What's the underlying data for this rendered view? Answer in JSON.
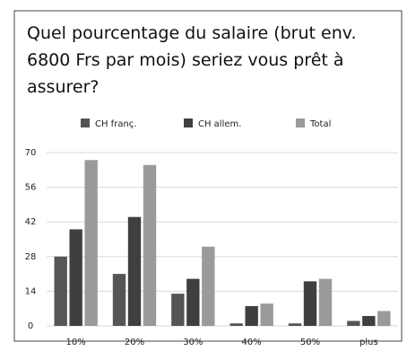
{
  "chart_data": {
    "type": "bar",
    "title": "Quel pourcentage du salaire (brut env. 6800 Frs par mois) seriez vous prêt à assurer?",
    "categories": [
      "10%",
      "20%",
      "30%",
      "40%",
      "50%",
      "plus"
    ],
    "series": [
      {
        "name": "CH franç.",
        "color": "#555555",
        "values": [
          28,
          21,
          13,
          1,
          1,
          2
        ]
      },
      {
        "name": "CH allem.",
        "color": "#3f3f3f",
        "values": [
          39,
          44,
          19,
          8,
          18,
          4
        ]
      },
      {
        "name": "Total",
        "color": "#9a9a9a",
        "values": [
          67,
          65,
          32,
          9,
          19,
          6
        ]
      }
    ],
    "ylim": [
      0,
      70
    ],
    "yticks": [
      0,
      14,
      28,
      42,
      56,
      70
    ],
    "grid": true,
    "legend": "top"
  }
}
